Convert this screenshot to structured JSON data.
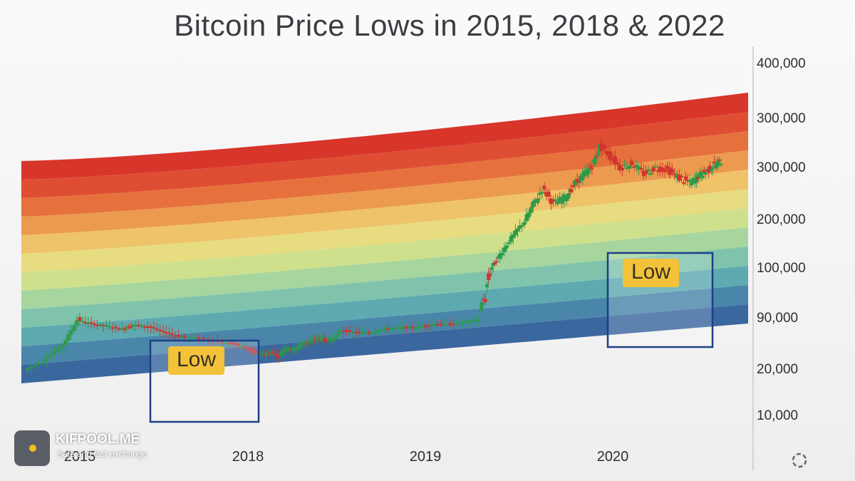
{
  "brand": {
    "name": "KIFPOOL.ME",
    "tagline": "Safe and fast exchange",
    "accent": "#f4c020"
  },
  "colors": {
    "band_top_red": "#d8352b",
    "band_mid_yellow": "#e8dc80",
    "band_bottom_blue": "#33569b",
    "candle_up": "#2d9a4a",
    "candle_down": "#d0342c",
    "highlight_box": "#1c3f86",
    "label_bg": "#f2c23a"
  },
  "chart_data": {
    "type": "line",
    "title": "Bitcoin Price Lows in 2015, 2018 & 2022",
    "xlabel": "",
    "ylabel": "",
    "x_ticks": [
      "2015",
      "2018",
      "2019",
      "2020"
    ],
    "y_ticks": [
      "400,000",
      "300,000",
      "300,000",
      "200,000",
      "100,000",
      "90,000",
      "20,000",
      "10,000"
    ],
    "background": "rainbow log-regression bands, red (top) to blue (bottom)",
    "band_count": 12,
    "grid": false,
    "annotations": [
      {
        "text": "Low",
        "period": "2018",
        "type": "highlight-box"
      },
      {
        "text": "Low",
        "period": "2020",
        "type": "highlight-box"
      }
    ],
    "series": [
      {
        "type": "candlestick",
        "x": [
          2014.9,
          2015.1,
          2015.3,
          2015.45,
          2015.6,
          2015.75,
          2015.9,
          2016.0,
          2016.15,
          2016.3,
          2016.45,
          2016.6,
          2016.75,
          2016.85,
          2016.92,
          2017.0,
          2017.1,
          2017.2,
          2017.3,
          2017.4,
          2017.5,
          2017.6,
          2017.7,
          2017.8,
          2017.9,
          2018.0,
          2018.1,
          2018.2,
          2018.3,
          2018.4,
          2018.5,
          2018.6,
          2018.7,
          2018.8,
          2018.9,
          2018.95,
          2019.0,
          2019.1,
          2019.2,
          2019.3,
          2019.4,
          2019.5,
          2019.6,
          2019.7,
          2019.78,
          2019.85,
          2019.92,
          2020.0,
          2020.1,
          2020.2,
          2020.3,
          2020.4,
          2020.5,
          2020.6,
          2020.7,
          2020.78,
          2020.85,
          2020.92,
          2021.0
        ],
        "close": [
          20000,
          27000,
          42000,
          88000,
          79000,
          74000,
          68000,
          76000,
          73000,
          62000,
          55000,
          51000,
          46000,
          42000,
          36000,
          32000,
          34000,
          31000,
          39000,
          37000,
          44000,
          47000,
          52000,
          49000,
          51000,
          65000,
          61000,
          62000,
          69000,
          70000,
          72000,
          79000,
          78000,
          83000,
          92000,
          100000,
          118000,
          150000,
          185000,
          221000,
          258000,
          230000,
          240000,
          270000,
          290000,
          310000,
          360000,
          340000,
          305000,
          315000,
          290000,
          305000,
          300000,
          280000,
          270000,
          285000,
          295000,
          310000,
          320000
        ]
      }
    ]
  }
}
